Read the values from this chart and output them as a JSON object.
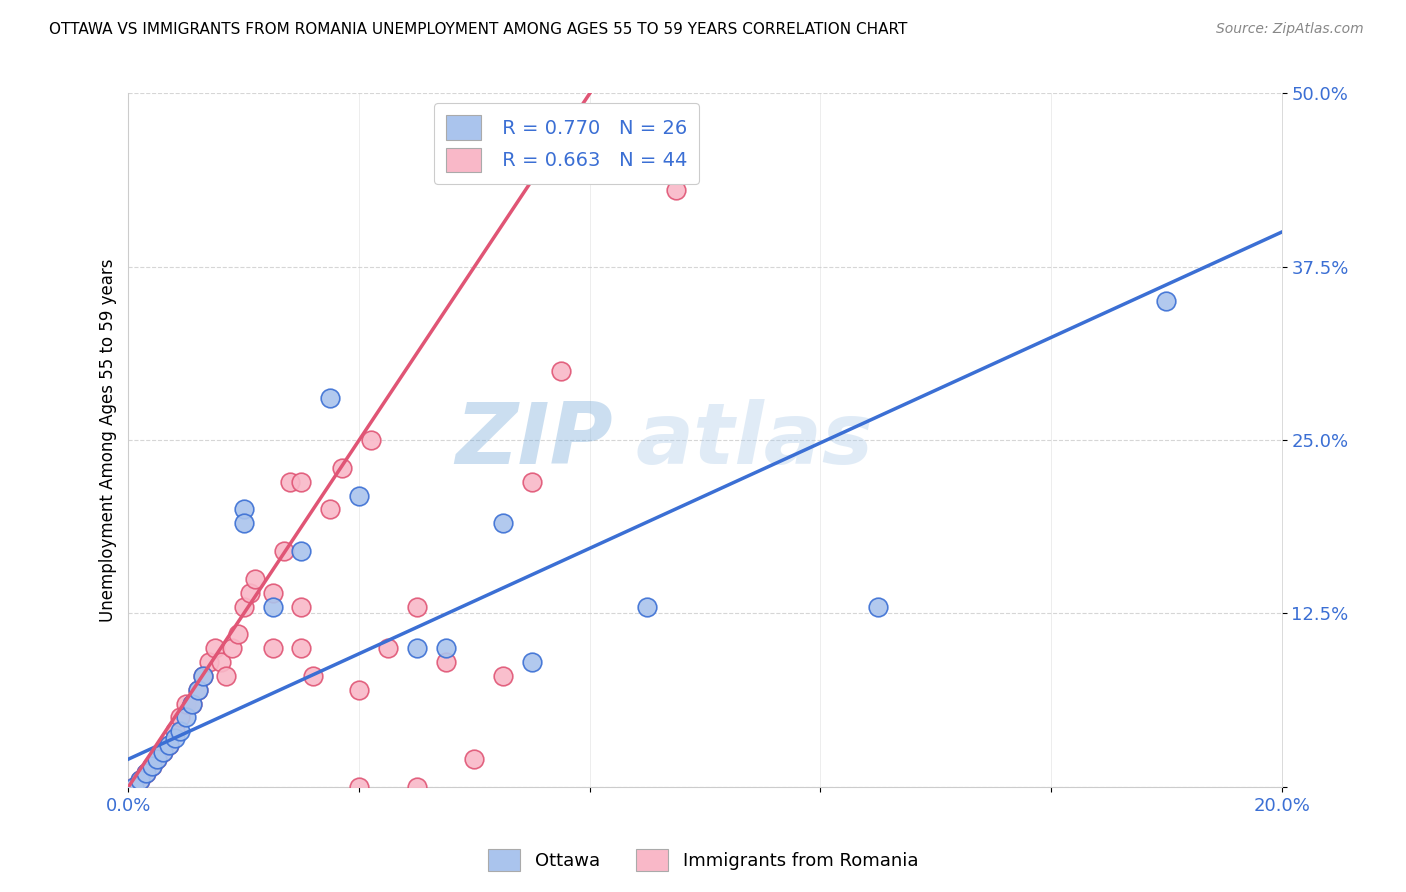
{
  "title": "OTTAWA VS IMMIGRANTS FROM ROMANIA UNEMPLOYMENT AMONG AGES 55 TO 59 YEARS CORRELATION CHART",
  "source": "Source: ZipAtlas.com",
  "ylabel": "Unemployment Among Ages 55 to 59 years",
  "xlim": [
    0.0,
    0.2
  ],
  "ylim": [
    0.0,
    0.5
  ],
  "xticks": [
    0.0,
    0.04,
    0.08,
    0.12,
    0.16,
    0.2
  ],
  "yticks": [
    0.0,
    0.125,
    0.25,
    0.375,
    0.5
  ],
  "ytick_labels": [
    "",
    "12.5%",
    "25.0%",
    "37.5%",
    "50.0%"
  ],
  "xtick_labels": [
    "0.0%",
    "",
    "",
    "",
    "",
    "20.0%"
  ],
  "ottawa_color": "#aac4ed",
  "romania_color": "#f9b8c8",
  "line_ottawa_color": "#3b6fd4",
  "line_romania_color": "#e05575",
  "watermark_zip": "ZIP",
  "watermark_atlas": "atlas",
  "legend_R_ottawa": "R = 0.770",
  "legend_N_ottawa": "N = 26",
  "legend_R_romania": "R = 0.663",
  "legend_N_romania": "N = 44",
  "ottawa_x": [
    0.001,
    0.002,
    0.003,
    0.004,
    0.005,
    0.006,
    0.007,
    0.008,
    0.009,
    0.01,
    0.011,
    0.012,
    0.013,
    0.02,
    0.02,
    0.025,
    0.03,
    0.035,
    0.04,
    0.05,
    0.055,
    0.065,
    0.07,
    0.09,
    0.13,
    0.18
  ],
  "ottawa_y": [
    0.0,
    0.005,
    0.01,
    0.015,
    0.02,
    0.025,
    0.03,
    0.035,
    0.04,
    0.05,
    0.06,
    0.07,
    0.08,
    0.2,
    0.19,
    0.13,
    0.17,
    0.28,
    0.21,
    0.1,
    0.1,
    0.19,
    0.09,
    0.13,
    0.13,
    0.35
  ],
  "romania_x": [
    0.001,
    0.002,
    0.003,
    0.004,
    0.005,
    0.006,
    0.007,
    0.008,
    0.009,
    0.01,
    0.011,
    0.012,
    0.013,
    0.014,
    0.015,
    0.016,
    0.017,
    0.018,
    0.019,
    0.02,
    0.021,
    0.022,
    0.025,
    0.025,
    0.027,
    0.028,
    0.03,
    0.03,
    0.03,
    0.032,
    0.035,
    0.037,
    0.04,
    0.04,
    0.042,
    0.045,
    0.05,
    0.05,
    0.055,
    0.06,
    0.065,
    0.07,
    0.075,
    0.095
  ],
  "romania_y": [
    0.0,
    0.005,
    0.01,
    0.015,
    0.02,
    0.025,
    0.03,
    0.04,
    0.05,
    0.06,
    0.06,
    0.07,
    0.08,
    0.09,
    0.1,
    0.09,
    0.08,
    0.1,
    0.11,
    0.13,
    0.14,
    0.15,
    0.1,
    0.14,
    0.17,
    0.22,
    0.1,
    0.13,
    0.22,
    0.08,
    0.2,
    0.23,
    0.0,
    0.07,
    0.25,
    0.1,
    0.0,
    0.13,
    0.09,
    0.02,
    0.08,
    0.22,
    0.3,
    0.43
  ],
  "ottawa_line_x": [
    0.0,
    0.2
  ],
  "ottawa_line_y": [
    0.02,
    0.4
  ],
  "romania_line_x": [
    0.0,
    0.08
  ],
  "romania_line_y": [
    0.0,
    0.5
  ]
}
